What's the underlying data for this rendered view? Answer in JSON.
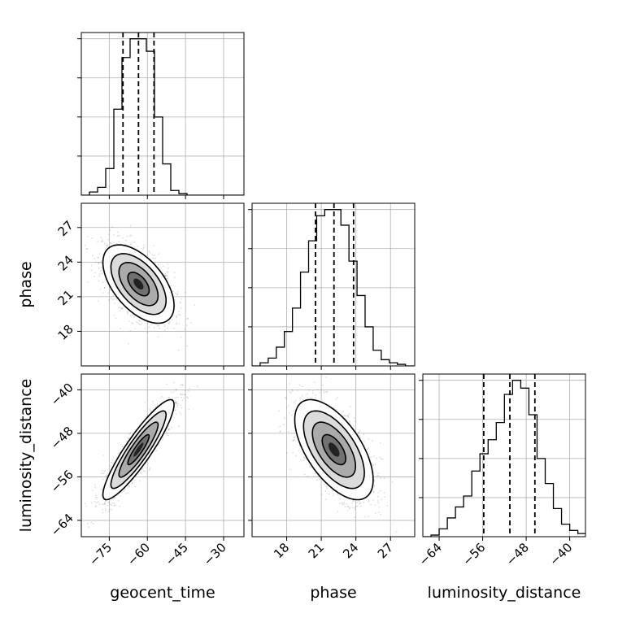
{
  "chart_data": {
    "type": "corner",
    "grid": true,
    "parameters": [
      {
        "name": "geocent_time",
        "axis_label": "geocent_time",
        "range": [
          -86,
          -22
        ],
        "ticks": [
          -75,
          -60,
          -45,
          -30
        ],
        "tick_labels": [
          "−75",
          "−60",
          "−45",
          "−30"
        ]
      },
      {
        "name": "phase",
        "axis_label": "phase",
        "range": [
          15.0,
          29.1
        ],
        "ticks": [
          18,
          21,
          24,
          27
        ],
        "tick_labels": [
          "18",
          "21",
          "24",
          "27"
        ]
      },
      {
        "name": "luminosity_distance",
        "axis_label": "luminosity_distance",
        "range": [
          -67.0,
          -37.1
        ],
        "ticks": [
          -64,
          -56,
          -48,
          -40
        ],
        "tick_labels": [
          "−64",
          "−56",
          "−48",
          "−40"
        ]
      }
    ],
    "marginals": [
      {
        "parameter": "geocent_time",
        "quantiles": [
          -69.6,
          -63.5,
          -57.4
        ],
        "bin_edges": [
          -86,
          -82.8,
          -79.6,
          -76.4,
          -73.2,
          -70,
          -66.8,
          -63.6,
          -60.4,
          -57.2,
          -54,
          -50.8,
          -47.6,
          -44.4,
          -41.2,
          -38,
          -34.8,
          -31.6,
          -28.4,
          -25.2,
          -22
        ],
        "counts": [
          0,
          0.02,
          0.05,
          0.17,
          0.55,
          0.88,
          1.0,
          1.0,
          0.92,
          0.5,
          0.2,
          0.03,
          0.01,
          0,
          0,
          0,
          0,
          0,
          0,
          0
        ]
      },
      {
        "parameter": "phase",
        "quantiles": [
          20.5,
          22.1,
          23.8
        ],
        "bin_edges": [
          15.0,
          15.7,
          16.4,
          17.1,
          17.8,
          18.5,
          19.2,
          19.9,
          20.6,
          21.3,
          22.0,
          22.7,
          23.4,
          24.1,
          24.8,
          25.5,
          26.2,
          26.9,
          27.6,
          28.3,
          29.0
        ],
        "counts": [
          0,
          0.02,
          0.05,
          0.12,
          0.22,
          0.37,
          0.6,
          0.8,
          0.96,
          1.0,
          1.0,
          0.9,
          0.67,
          0.45,
          0.25,
          0.1,
          0.04,
          0.02,
          0.01,
          0
        ]
      },
      {
        "parameter": "luminosity_distance",
        "quantiles": [
          -55.8,
          -51.0,
          -46.4
        ],
        "bin_edges": [
          -67.0,
          -65.5,
          -64.0,
          -62.5,
          -61.0,
          -59.5,
          -58.0,
          -56.5,
          -55.0,
          -53.5,
          -52.0,
          -50.5,
          -49.0,
          -47.5,
          -46.0,
          -44.5,
          -43.0,
          -41.5,
          -40.0,
          -38.5,
          -37.0
        ],
        "counts": [
          0,
          0.01,
          0.05,
          0.12,
          0.19,
          0.26,
          0.42,
          0.53,
          0.62,
          0.73,
          0.91,
          1.0,
          0.95,
          0.78,
          0.5,
          0.34,
          0.18,
          0.08,
          0.04,
          0.02
        ]
      }
    ],
    "joints": [
      {
        "x": "geocent_time",
        "y": "phase",
        "mean": [
          -63.5,
          22.1
        ],
        "sd": [
          7.0,
          1.7
        ],
        "rho": -0.55
      },
      {
        "x": "geocent_time",
        "y": "luminosity_distance",
        "mean": [
          -63.5,
          -51.0
        ],
        "sd": [
          7.0,
          4.6
        ],
        "rho": 0.9
      },
      {
        "x": "phase",
        "y": "luminosity_distance",
        "mean": [
          22.1,
          -51.0
        ],
        "sd": [
          1.7,
          4.6
        ],
        "rho": -0.6
      }
    ]
  }
}
